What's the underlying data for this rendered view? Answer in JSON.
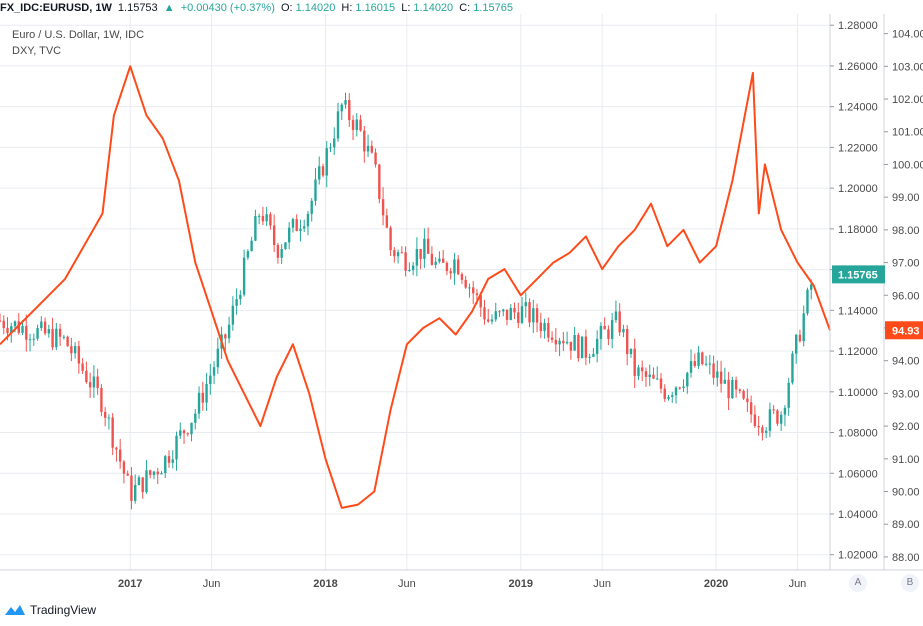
{
  "header": {
    "symbol": "FX_IDC:EURUSD, 1W",
    "last": "1.15753",
    "arrow": "▲",
    "change": "+0.00430 (+0.37%)",
    "o_label": "O:",
    "o_value": "1.14020",
    "h_label": "H:",
    "h_value": "1.16015",
    "l_label": "L:",
    "l_value": "1.14020",
    "c_label": "C:",
    "c_value": "1.15765"
  },
  "legend": {
    "main_series": "Euro / U.S. Dollar, 1W, IDC",
    "overlay_series": "DXY, TVC"
  },
  "price_badges": {
    "main_last": "1.15765",
    "overlay_last": "94.93"
  },
  "scale_buttons": {
    "a": "A",
    "b": "B"
  },
  "footer": {
    "brand": "TradingView"
  },
  "colors": {
    "up": "#26a69a",
    "down": "#ef5350",
    "overlay_line": "#ff4a1a",
    "grid": "#e8ebef",
    "axis_text": "#4a4a4a"
  },
  "chart_data": {
    "type": "line",
    "x_range": [
      "2016-05",
      "2020-08"
    ],
    "x_tick_labels": [
      "2017",
      "Jun",
      "2018",
      "Jun",
      "2019",
      "Jun",
      "2020",
      "Jun"
    ],
    "left_axis": {
      "ticks": [
        "1.28000",
        "1.26000",
        "1.24000",
        "1.22000",
        "1.20000",
        "1.18000",
        "1.16000",
        "1.14000",
        "1.12000",
        "1.10000",
        "1.08000",
        "1.06000",
        "1.04000",
        "1.02000"
      ],
      "ylim": [
        1.0125,
        1.2855
      ]
    },
    "right_axis": {
      "ticks": [
        "104.00",
        "103.00",
        "102.00",
        "101.00",
        "100.00",
        "99.00",
        "98.00",
        "97.00",
        "96.00",
        "95.00",
        "94.00",
        "93.00",
        "92.00",
        "91.00",
        "90.00",
        "89.00",
        "88.00"
      ],
      "ylim": [
        87.6,
        104.6
      ]
    },
    "series": [
      {
        "name": "Euro / U.S. Dollar, 1W, IDC",
        "style": "candlestick-weekly",
        "x": [
          "2016-05",
          "2016-09",
          "2016-11-10",
          "2017-01",
          "2017-03",
          "2017-05",
          "2017-07",
          "2017-09",
          "2017-10",
          "2017-12",
          "2018-01",
          "2018-02",
          "2018-03",
          "2018-04",
          "2018-05",
          "2018-06",
          "2018-07",
          "2018-08",
          "2018-09",
          "2018-10",
          "2018-11",
          "2019-01",
          "2019-03",
          "2019-05",
          "2019-07",
          "2019-08",
          "2019-10",
          "2019-12",
          "2020-02",
          "2020-03",
          "2020-04",
          "2020-05",
          "2020-06",
          "2020-07"
        ],
        "y": [
          1.135,
          1.125,
          1.095,
          1.05,
          1.065,
          1.09,
          1.13,
          1.19,
          1.17,
          1.19,
          1.215,
          1.24,
          1.23,
          1.21,
          1.17,
          1.165,
          1.17,
          1.16,
          1.165,
          1.15,
          1.135,
          1.14,
          1.13,
          1.12,
          1.135,
          1.11,
          1.1,
          1.115,
          1.1,
          1.09,
          1.085,
          1.09,
          1.125,
          1.15765
        ]
      },
      {
        "name": "DXY, TVC",
        "style": "line",
        "x": [
          "2016-05",
          "2016-09",
          "2016-11-10",
          "2016-12",
          "2017-01",
          "2017-02",
          "2017-03",
          "2017-04",
          "2017-05",
          "2017-06",
          "2017-07",
          "2017-08",
          "2017-09",
          "2017-10",
          "2017-11",
          "2017-12",
          "2018-01",
          "2018-02",
          "2018-03",
          "2018-04",
          "2018-05",
          "2018-06",
          "2018-07",
          "2018-08",
          "2018-09",
          "2018-10",
          "2018-11",
          "2018-12",
          "2019-01",
          "2019-02",
          "2019-03",
          "2019-04",
          "2019-05",
          "2019-06",
          "2019-07",
          "2019-08",
          "2019-09",
          "2019-10",
          "2019-11",
          "2019-12",
          "2020-01",
          "2020-02",
          "2020-03-09",
          "2020-03-20",
          "2020-04",
          "2020-05",
          "2020-06",
          "2020-07",
          "2020-08"
        ],
        "y": [
          94.5,
          96.5,
          98.5,
          101.5,
          103.0,
          101.5,
          100.8,
          99.5,
          97.0,
          95.5,
          94.0,
          93.0,
          92.0,
          93.5,
          94.5,
          93.0,
          91.0,
          89.5,
          89.6,
          90.0,
          92.5,
          94.5,
          95.0,
          95.3,
          94.8,
          95.5,
          96.5,
          96.8,
          96.0,
          96.5,
          97.0,
          97.3,
          97.8,
          96.8,
          97.5,
          98.0,
          98.8,
          97.5,
          98.0,
          97.0,
          97.5,
          99.5,
          102.8,
          98.5,
          100.0,
          98.0,
          97.0,
          96.3,
          94.93
        ]
      }
    ],
    "grid": true
  }
}
